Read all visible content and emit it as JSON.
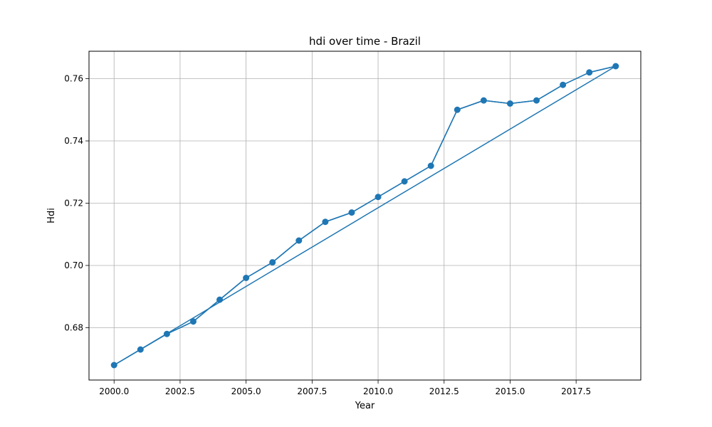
{
  "chart_data": {
    "type": "line",
    "title": "hdi over time - Brazil",
    "xlabel": "Year",
    "ylabel": "Hdi",
    "xlim": [
      1999.05,
      2019.95
    ],
    "ylim": [
      0.6632,
      0.7688
    ],
    "xticks": [
      2000.0,
      2002.5,
      2005.0,
      2007.5,
      2010.0,
      2012.5,
      2015.0,
      2017.5
    ],
    "xtick_labels": [
      "2000.0",
      "2002.5",
      "2005.0",
      "2007.5",
      "2010.0",
      "2012.5",
      "2015.0",
      "2017.5"
    ],
    "yticks": [
      0.68,
      0.7,
      0.72,
      0.74,
      0.76
    ],
    "ytick_labels": [
      "0.68",
      "0.70",
      "0.72",
      "0.74",
      "0.76"
    ],
    "grid": true,
    "color": "#1f77b4",
    "series": [
      {
        "marker": "circle",
        "x": [
          2000,
          2001,
          2002,
          2003,
          2004,
          2005,
          2006,
          2007,
          2008,
          2009,
          2010,
          2011,
          2012,
          2013,
          2014,
          2015,
          2016,
          2017,
          2018,
          2019
        ],
        "y": [
          0.668,
          0.673,
          0.678,
          0.682,
          0.689,
          0.696,
          0.701,
          0.708,
          0.714,
          0.717,
          0.722,
          0.727,
          0.732,
          0.75,
          0.753,
          0.752,
          0.753,
          0.758,
          0.762,
          0.764
        ]
      },
      {
        "marker": "none",
        "x": [
          2000,
          2001,
          2002,
          2003,
          2004,
          2005,
          2006,
          2007,
          2008,
          2009,
          2010,
          2011,
          2012,
          2013,
          2014,
          2015,
          2016,
          2017,
          2018,
          2019,
          2000
        ],
        "y": [
          0.668,
          0.673,
          0.678,
          0.682,
          0.689,
          0.696,
          0.701,
          0.708,
          0.714,
          0.717,
          0.722,
          0.727,
          0.732,
          0.75,
          0.753,
          0.752,
          0.753,
          0.758,
          0.762,
          0.764,
          0.668
        ]
      }
    ]
  }
}
